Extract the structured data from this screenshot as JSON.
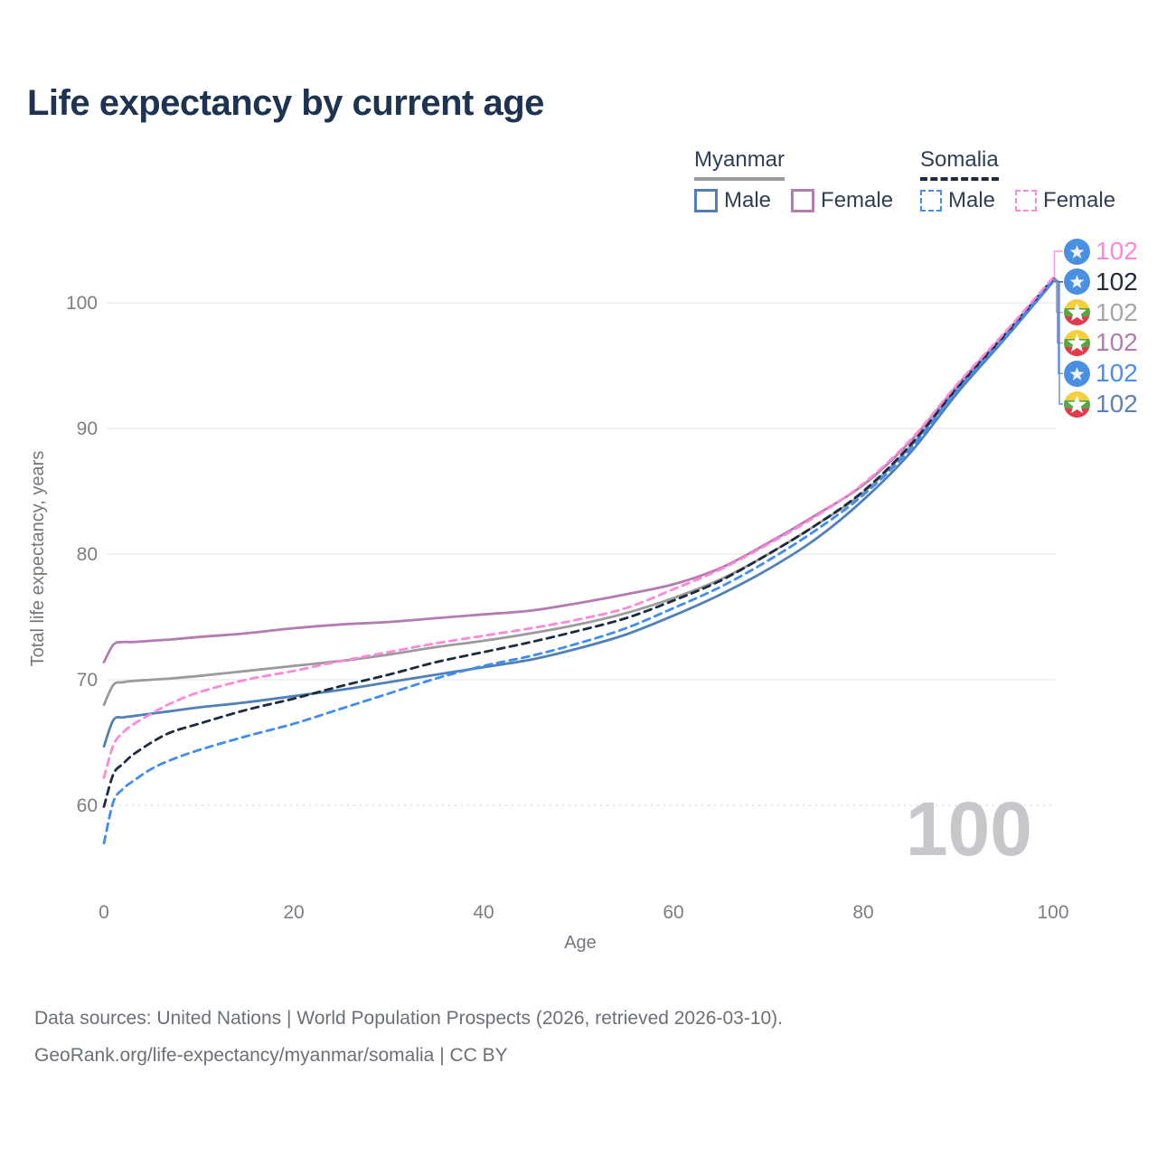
{
  "title": "Life expectancy by current age",
  "legend": {
    "groups": [
      {
        "name": "Myanmar",
        "underline": "solid",
        "underline_color": "#9a9a9a",
        "items": [
          {
            "label": "Male",
            "color": "#5080b8",
            "dashed": false
          },
          {
            "label": "Female",
            "color": "#b47ab2",
            "dashed": false
          }
        ]
      },
      {
        "name": "Somalia",
        "underline": "dashed",
        "underline_color": "#1e2b3c",
        "items": [
          {
            "label": "Male",
            "color": "#3f8cf2",
            "dashed": true
          },
          {
            "label": "Female",
            "color": "#fd87d9",
            "dashed": true
          }
        ]
      }
    ]
  },
  "watermark": "100",
  "end_labels": [
    {
      "value": "102",
      "flag": "somalia",
      "color": "#fd87d9",
      "series": "Somalia Female"
    },
    {
      "value": "102",
      "flag": "somalia",
      "color": "#222c3d",
      "series": "Somalia Both sexes"
    },
    {
      "value": "102",
      "flag": "myanmar",
      "color": "#a6a6a8",
      "series": "Myanmar Both sexes"
    },
    {
      "value": "102",
      "flag": "myanmar",
      "color": "#b47ab2",
      "series": "Myanmar Female"
    },
    {
      "value": "102",
      "flag": "somalia",
      "color": "#4a8def",
      "series": "Somalia Male"
    },
    {
      "value": "102",
      "flag": "myanmar",
      "color": "#5a83b8",
      "series": "Myanmar Male"
    }
  ],
  "footer": {
    "line1": "Data sources: United Nations | World Population Prospects (2026, retrieved 2026-03-10).",
    "line2": "GeoRank.org/life-expectancy/myanmar/somalia | CC BY"
  },
  "chart_data": {
    "type": "line",
    "title": "Life expectancy by current age",
    "xlabel": "Age",
    "ylabel": "Total life expectancy, years",
    "xlim": [
      0,
      100
    ],
    "ylim": [
      56,
      104
    ],
    "xticks": [
      0,
      20,
      40,
      60,
      80,
      100
    ],
    "yticks": [
      60,
      70,
      80,
      90,
      100
    ],
    "grid": "horizontal-only",
    "legend_position": "top-right",
    "x": [
      0,
      1,
      2,
      3,
      5,
      7,
      10,
      15,
      20,
      25,
      30,
      35,
      40,
      45,
      50,
      55,
      60,
      65,
      70,
      75,
      80,
      85,
      90,
      95,
      100
    ],
    "series": [
      {
        "name": "Myanmar Both sexes",
        "country": "Myanmar",
        "sex": "both",
        "color": "#9b9b9b",
        "dashed": false,
        "values": [
          68.0,
          69.6,
          69.8,
          69.9,
          70.0,
          70.1,
          70.3,
          70.7,
          71.1,
          71.5,
          72.0,
          72.6,
          73.1,
          73.7,
          74.4,
          75.3,
          76.5,
          78.0,
          80.0,
          82.3,
          84.9,
          88.6,
          93.2,
          97.4,
          101.87
        ]
      },
      {
        "name": "Myanmar Female",
        "country": "Myanmar",
        "sex": "female",
        "color": "#b47ab2",
        "dashed": false,
        "values": [
          71.4,
          72.8,
          73.0,
          73.0,
          73.1,
          73.2,
          73.4,
          73.7,
          74.1,
          74.4,
          74.6,
          74.9,
          75.2,
          75.5,
          76.1,
          76.8,
          77.6,
          78.9,
          80.9,
          83.1,
          85.5,
          89.0,
          93.5,
          97.6,
          101.8
        ]
      },
      {
        "name": "Myanmar Male",
        "country": "Myanmar",
        "sex": "male",
        "color": "#5080b8",
        "dashed": false,
        "values": [
          64.7,
          66.8,
          67.0,
          67.1,
          67.3,
          67.5,
          67.8,
          68.2,
          68.7,
          69.2,
          69.8,
          70.4,
          71.0,
          71.6,
          72.5,
          73.6,
          75.1,
          76.8,
          78.8,
          81.2,
          84.3,
          88.1,
          92.9,
          97.2,
          101.68
        ]
      },
      {
        "name": "Somalia Both sexes",
        "country": "Somalia",
        "sex": "both",
        "color": "#1c2b3f",
        "dashed": true,
        "values": [
          59.9,
          62.5,
          63.3,
          64.0,
          65.0,
          65.8,
          66.5,
          67.6,
          68.5,
          69.5,
          70.4,
          71.4,
          72.2,
          73.0,
          73.9,
          74.9,
          76.3,
          77.9,
          80.0,
          82.3,
          85.0,
          88.7,
          93.3,
          97.5,
          101.93
        ]
      },
      {
        "name": "Somalia Female",
        "country": "Somalia",
        "sex": "female",
        "color": "#fd87d9",
        "dashed": true,
        "values": [
          62.2,
          64.8,
          65.8,
          66.4,
          67.3,
          68.1,
          69.0,
          70.0,
          70.7,
          71.5,
          72.2,
          72.9,
          73.5,
          74.1,
          74.8,
          75.7,
          77.2,
          78.8,
          80.8,
          83.0,
          85.6,
          89.1,
          93.6,
          97.7,
          102.0
        ]
      },
      {
        "name": "Somalia Male",
        "country": "Somalia",
        "sex": "male",
        "color": "#3f8cf2",
        "dashed": true,
        "values": [
          57.0,
          60.3,
          61.3,
          61.9,
          62.9,
          63.6,
          64.4,
          65.5,
          66.5,
          67.7,
          68.9,
          70.1,
          71.1,
          71.9,
          72.9,
          74.1,
          75.7,
          77.4,
          79.5,
          81.9,
          84.7,
          88.4,
          93.1,
          97.3,
          101.74
        ]
      }
    ]
  }
}
